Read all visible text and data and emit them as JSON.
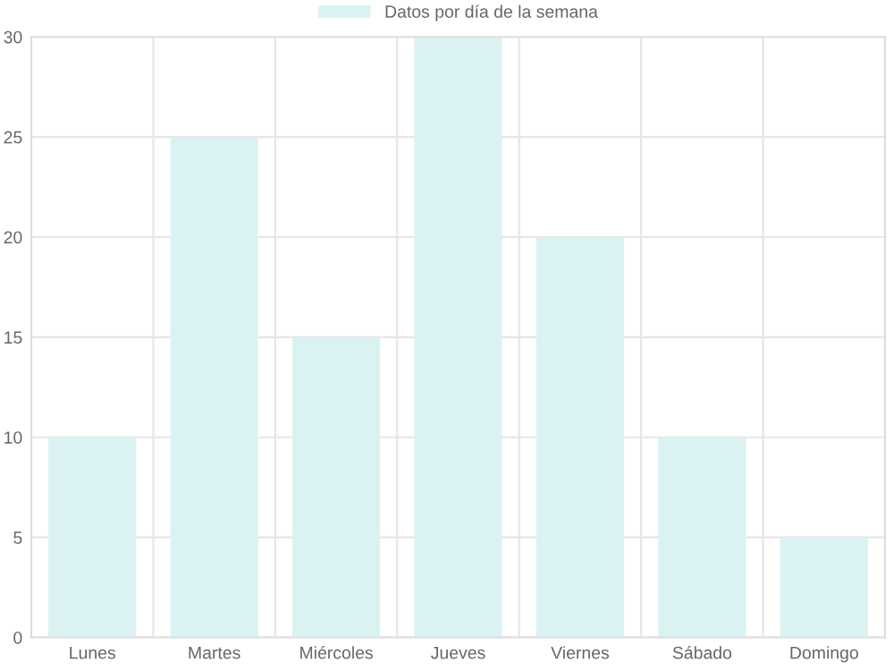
{
  "chart_data": {
    "type": "bar",
    "categories": [
      "Lunes",
      "Martes",
      "Miércoles",
      "Jueves",
      "Viernes",
      "Sábado",
      "Domingo"
    ],
    "series": [
      {
        "name": "Datos por día de la semana",
        "color": "#dbf2f2",
        "values": [
          10,
          25,
          15,
          30,
          20,
          10,
          5
        ]
      }
    ],
    "ylim": [
      0,
      30
    ],
    "yticks": [
      0,
      5,
      10,
      15,
      20,
      25,
      30
    ],
    "grid": true,
    "legend": "top"
  }
}
